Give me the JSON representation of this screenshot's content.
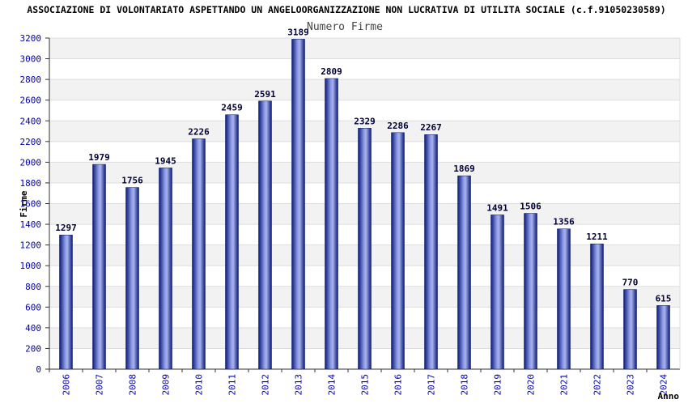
{
  "chart_data": {
    "type": "bar",
    "title": "ASSOCIAZIONE DI VOLONTARIATO ASPETTANDO UN ANGELOORGANIZZAZIONE NON LUCRATIVA DI UTILITA SOCIALE (c.f.91050230589)",
    "subtitle": "Numero Firme",
    "xlabel": "Anno",
    "ylabel": "Firme",
    "categories": [
      "2006",
      "2007",
      "2008",
      "2009",
      "2010",
      "2011",
      "2012",
      "2013",
      "2014",
      "2015",
      "2016",
      "2017",
      "2018",
      "2019",
      "2020",
      "2021",
      "2022",
      "2023",
      "2024"
    ],
    "values": [
      1297,
      1979,
      1756,
      1945,
      2226,
      2459,
      2591,
      3189,
      2809,
      2329,
      2286,
      2267,
      1869,
      1491,
      1506,
      1356,
      1211,
      770,
      615
    ],
    "ylim": [
      0,
      3200
    ],
    "yticks": [
      0,
      200,
      400,
      600,
      800,
      1000,
      1200,
      1400,
      1600,
      1800,
      2000,
      2200,
      2400,
      2600,
      2800,
      3000,
      3200
    ],
    "grid": true,
    "legend": "none",
    "colors": {
      "bar_dark": "#0a1a7a",
      "bar_light": "#a9b4ee",
      "band": "#f2f2f2",
      "tick_text": "#0000aa"
    }
  }
}
